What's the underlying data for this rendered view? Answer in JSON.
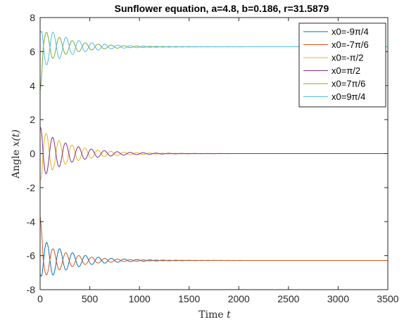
{
  "chart_data": {
    "type": "line",
    "title": "Sunflower equation, a=4.8, b=0.186, r=31.5879",
    "xlabel_prefix": "Time ",
    "xlabel_var": "t",
    "ylabel_prefix": "Angle ",
    "ylabel_var": "x(t)",
    "xlim": [
      0,
      3500
    ],
    "ylim": [
      -8,
      8
    ],
    "xticks": [
      0,
      500,
      1000,
      1500,
      2000,
      2500,
      3000,
      3500
    ],
    "yticks": [
      -8,
      -6,
      -4,
      -2,
      0,
      2,
      4,
      6,
      8
    ],
    "xtick_labels": [
      "0",
      "500",
      "1000",
      "1500",
      "2000",
      "2500",
      "3000",
      "3500"
    ],
    "ytick_labels": [
      "-8",
      "-6",
      "-4",
      "-2",
      "0",
      "2",
      "4",
      "6",
      "8"
    ],
    "grid": false,
    "legend_position": "top-right",
    "period": 130,
    "series": [
      {
        "name": "x0=-9π/4",
        "color": "#0072BD",
        "x0": -7.07,
        "equilibrium": -6.283,
        "amplitude": 1.32,
        "decay": 0.0033,
        "phase": 3.05,
        "frequency_drift": 0.0
      },
      {
        "name": "x0=-7π/6",
        "color": "#D95319",
        "x0": -3.67,
        "equilibrium": -6.283,
        "amplitude": 1.05,
        "decay": 0.0033,
        "phase": 0.0,
        "frequency_drift": 0.0
      },
      {
        "name": "x0=-π/2",
        "color": "#EDB120",
        "x0": -1.571,
        "equilibrium": 0.0,
        "amplitude": 1.45,
        "decay": 0.0033,
        "phase": 3.3,
        "frequency_drift": 0.0
      },
      {
        "name": "x0=π/2",
        "color": "#7E2F8E",
        "x0": 1.571,
        "equilibrium": 0.0,
        "amplitude": 1.45,
        "decay": 0.0033,
        "phase": 0.16,
        "frequency_drift": 0.0
      },
      {
        "name": "x0=7π/6",
        "color": "#77AC30",
        "x0": 3.67,
        "equilibrium": 6.283,
        "amplitude": 1.05,
        "decay": 0.0033,
        "phase": 3.14,
        "frequency_drift": 0.0
      },
      {
        "name": "x0=9π/4",
        "color": "#4DBEEE",
        "x0": 7.07,
        "equilibrium": 6.283,
        "amplitude": 1.32,
        "decay": 0.0033,
        "phase": 6.2,
        "frequency_drift": 0.0
      }
    ]
  }
}
